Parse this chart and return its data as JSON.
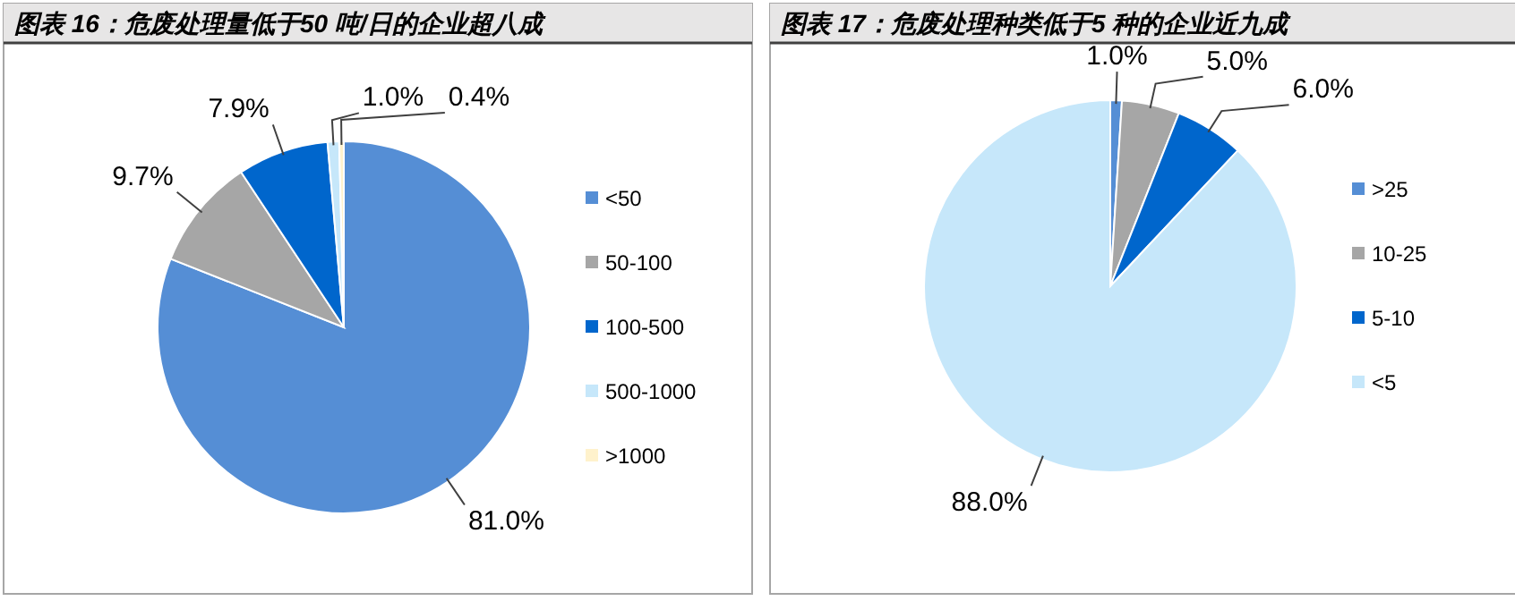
{
  "chart_data": [
    {
      "type": "pie",
      "title": "图表 16：危废处理量低于50 吨/日的企业超八成",
      "categories": [
        "<50",
        "50-100",
        "100-500",
        "500-1000",
        ">1000"
      ],
      "values": [
        81.0,
        9.7,
        7.9,
        1.0,
        0.4
      ],
      "value_labels": [
        "81.0%",
        "9.7%",
        "7.9%",
        "1.0%",
        "0.4%"
      ],
      "colors": [
        "#558ed5",
        "#a6a6a6",
        "#0066cc",
        "#c6e7fa",
        "#fff2cc"
      ],
      "legend": "right"
    },
    {
      "type": "pie",
      "title": "图表 17：危废处理种类低于5 种的企业近九成",
      "categories": [
        ">25",
        "10-25",
        "5-10",
        "<5"
      ],
      "values": [
        1.0,
        5.0,
        6.0,
        88.0
      ],
      "value_labels": [
        "1.0%",
        "5.0%",
        "6.0%",
        "88.0%"
      ],
      "colors": [
        "#558ed5",
        "#a6a6a6",
        "#0066cc",
        "#c6e7fa"
      ],
      "legend": "right"
    }
  ]
}
